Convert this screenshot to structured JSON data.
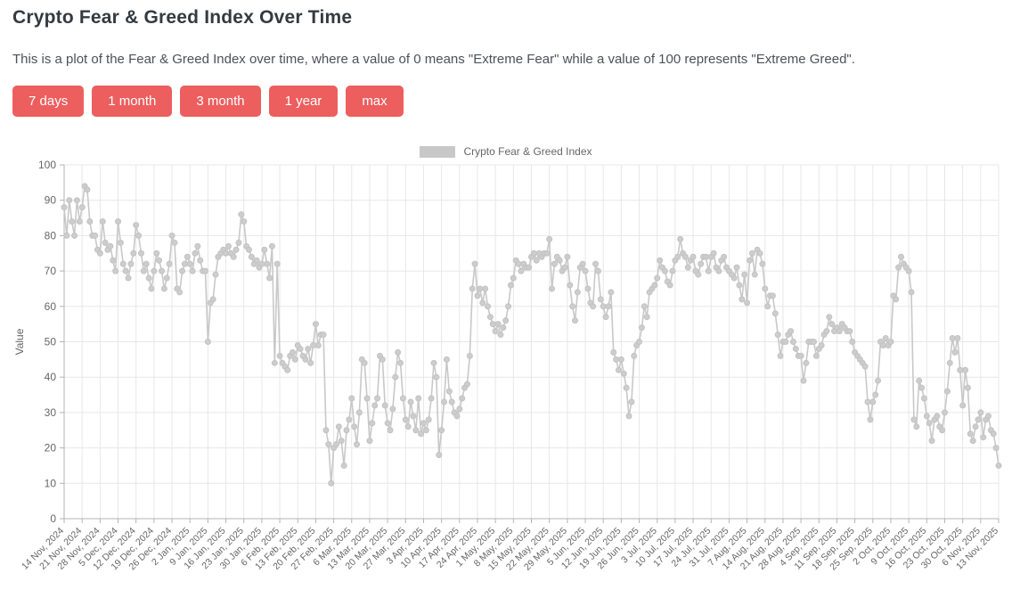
{
  "page": {
    "title": "Crypto Fear & Greed Index Over Time",
    "description": "This is a plot of the Fear & Greed Index over time, where a value of 0 means \"Extreme Fear\" while a value of 100 represents \"Extreme Greed\"."
  },
  "buttons": [
    "7 days",
    "1 month",
    "3 month",
    "1 year",
    "max"
  ],
  "legend": {
    "label": "Crypto Fear & Greed Index",
    "swatch_color": "#c8c8c8"
  },
  "colors": {
    "accent": "#ed5e5e",
    "series": "#c8c8c8",
    "marker": "#cdcdcd",
    "grid": "#e7e7e7",
    "axis": "#b3b3b3",
    "tick_text": "#666666",
    "title_text": "#343a40"
  },
  "chart_data": {
    "type": "line",
    "title": "",
    "xlabel": "",
    "ylabel": "Value",
    "ylim": [
      0,
      100
    ],
    "grid": true,
    "markers": true,
    "legend_position": "top",
    "legend_label": "Crypto Fear & Greed Index",
    "series_color": "#c8c8c8",
    "x_start": "14 Nov, 2024",
    "x_end": "13 Nov, 2025",
    "x_tick_interval_days": 7,
    "y_ticks": [
      0,
      10,
      20,
      30,
      40,
      50,
      60,
      70,
      80,
      90,
      100
    ],
    "x_tick_labels": [
      "14 Nov, 2024",
      "21 Nov, 2024",
      "28 Nov, 2024",
      "5 Dec, 2024",
      "12 Dec, 2024",
      "19 Dec, 2024",
      "26 Dec, 2024",
      "2 Jan, 2025",
      "9 Jan, 2025",
      "16 Jan, 2025",
      "23 Jan, 2025",
      "30 Jan, 2025",
      "6 Feb, 2025",
      "13 Feb, 2025",
      "20 Feb, 2025",
      "27 Feb, 2025",
      "6 Mar, 2025",
      "13 Mar, 2025",
      "20 Mar, 2025",
      "27 Mar, 2025",
      "3 Apr, 2025",
      "10 Apr, 2025",
      "17 Apr, 2025",
      "24 Apr, 2025",
      "1 May, 2025",
      "8 May, 2025",
      "15 May, 2025",
      "22 May, 2025",
      "29 May, 2025",
      "5 Jun, 2025",
      "12 Jun, 2025",
      "19 Jun, 2025",
      "26 Jun, 2025",
      "3 Jul, 2025",
      "10 Jul, 2025",
      "17 Jul, 2025",
      "24 Jul, 2025",
      "31 Jul, 2025",
      "7 Aug, 2025",
      "14 Aug, 2025",
      "21 Aug, 2025",
      "28 Aug, 2025",
      "4 Sep, 2025",
      "11 Sep, 2025",
      "18 Sep, 2025",
      "25 Sep, 2025",
      "2 Oct, 2025",
      "9 Oct, 2025",
      "16 Oct, 2025",
      "23 Oct, 2025",
      "30 Oct, 2025",
      "6 Nov, 2025",
      "13 Nov, 2025"
    ],
    "series": [
      {
        "name": "Crypto Fear & Greed Index",
        "color": "#c8c8c8",
        "values": [
          88,
          80,
          90,
          84,
          80,
          90,
          84,
          88,
          94,
          93,
          84,
          80,
          80,
          76,
          75,
          84,
          78,
          76,
          77,
          73,
          70,
          84,
          78,
          72,
          70,
          68,
          72,
          75,
          83,
          80,
          75,
          70,
          72,
          68,
          65,
          70,
          75,
          73,
          70,
          65,
          68,
          72,
          80,
          78,
          65,
          64,
          70,
          72,
          74,
          72,
          70,
          75,
          77,
          73,
          70,
          70,
          50,
          61,
          62,
          69,
          74,
          75,
          76,
          75,
          77,
          75,
          74,
          76,
          78,
          86,
          84,
          77,
          76,
          74,
          72,
          73,
          71,
          72,
          76,
          72,
          68,
          77,
          44,
          72,
          46,
          44,
          43,
          42,
          46,
          47,
          45,
          49,
          48,
          46,
          45,
          48,
          44,
          49,
          55,
          49,
          52,
          52,
          25,
          21,
          10,
          20,
          21,
          26,
          22,
          15,
          25,
          28,
          34,
          26,
          21,
          30,
          45,
          44,
          34,
          22,
          27,
          32,
          34,
          46,
          45,
          32,
          27,
          25,
          31,
          40,
          47,
          44,
          34,
          28,
          26,
          33,
          29,
          25,
          34,
          24,
          27,
          25,
          28,
          34,
          44,
          40,
          18,
          25,
          33,
          45,
          36,
          33,
          30,
          29,
          31,
          34,
          37,
          38,
          46,
          65,
          72,
          63,
          65,
          61,
          65,
          60,
          57,
          55,
          53,
          55,
          52,
          54,
          56,
          60,
          66,
          68,
          73,
          72,
          70,
          72,
          71,
          71,
          74,
          75,
          73,
          75,
          74,
          75,
          75,
          79,
          65,
          72,
          74,
          73,
          70,
          71,
          74,
          66,
          60,
          56,
          64,
          71,
          72,
          70,
          65,
          61,
          60,
          72,
          70,
          62,
          60,
          57,
          60,
          64,
          47,
          45,
          42,
          45,
          41,
          37,
          29,
          33,
          46,
          49,
          50,
          54,
          60,
          57,
          64,
          65,
          66,
          68,
          73,
          71,
          70,
          67,
          66,
          70,
          73,
          74,
          79,
          75,
          74,
          71,
          73,
          74,
          70,
          69,
          72,
          74,
          74,
          70,
          74,
          75,
          71,
          70,
          73,
          74,
          71,
          70,
          69,
          68,
          71,
          66,
          62,
          69,
          61,
          73,
          75,
          69,
          76,
          75,
          72,
          65,
          60,
          63,
          63,
          58,
          52,
          46,
          50,
          50,
          52,
          53,
          50,
          48,
          46,
          46,
          39,
          44,
          50,
          50,
          50,
          46,
          48,
          49,
          52,
          53,
          57,
          55,
          53,
          54,
          53,
          55,
          54,
          53,
          53,
          50,
          47,
          46,
          45,
          44,
          43,
          33,
          28,
          33,
          35,
          39,
          50,
          49,
          51,
          49,
          50,
          63,
          62,
          71,
          74,
          72,
          71,
          70,
          64,
          28,
          26,
          39,
          37,
          34,
          29,
          27,
          22,
          28,
          29,
          26,
          25,
          30,
          36,
          44,
          51,
          47,
          51,
          42,
          32,
          42,
          37,
          24,
          22,
          26,
          28,
          30,
          23,
          28,
          29,
          25,
          24,
          20,
          15
        ]
      }
    ]
  }
}
